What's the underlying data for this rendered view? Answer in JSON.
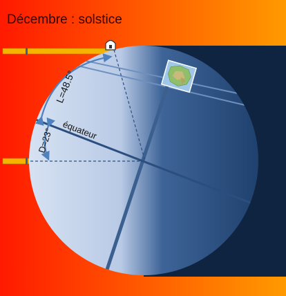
{
  "title": "Décembre : solstice",
  "labels": {
    "latitude": "L=48.5°",
    "declination": "D=23°",
    "equator": "équateur"
  },
  "colors": {
    "background_left": "#ff1a00",
    "background_right": "#ff9a00",
    "night": "#0f2440",
    "earth_day": "#cfdcf0",
    "earth_night": "#24497a",
    "axis": "#3b5f8f",
    "sun_ray": "#f5b400",
    "arrow": "#4f81bd"
  },
  "icons": {
    "observer": "dome-house-icon",
    "map": "france-map-icon"
  }
}
